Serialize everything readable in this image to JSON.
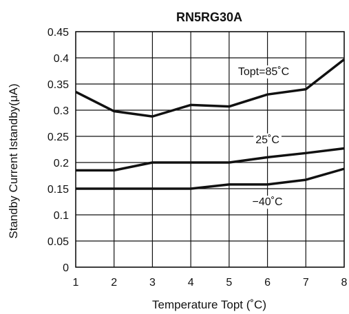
{
  "chart_data": {
    "type": "line",
    "title": "RN5RG30A",
    "xlabel": "Temperature Topt (˚C)",
    "ylabel": "Standby Current Istandby(μA)",
    "xlim": [
      1,
      8
    ],
    "ylim": [
      0,
      0.45
    ],
    "x_ticks": [
      "1",
      "2",
      "3",
      "4",
      "5",
      "6",
      "7",
      "8"
    ],
    "y_ticks": [
      "0",
      "0.05",
      "0.1",
      "0.15",
      "0.2",
      "0.25",
      "0.3",
      "0.35",
      "0.4",
      "0.45"
    ],
    "grid": true,
    "x": [
      1,
      2,
      3,
      4,
      5,
      6,
      7,
      8
    ],
    "series": [
      {
        "name": "Topt=85˚C",
        "values": [
          0.335,
          0.298,
          0.288,
          0.31,
          0.307,
          0.33,
          0.34,
          0.397
        ]
      },
      {
        "name": "25˚C",
        "values": [
          0.185,
          0.185,
          0.2,
          0.2,
          0.2,
          0.21,
          0.218,
          0.227
        ]
      },
      {
        "name": "−40˚C",
        "values": [
          0.15,
          0.15,
          0.15,
          0.15,
          0.158,
          0.158,
          0.167,
          0.188
        ]
      }
    ],
    "line_color": "#111111",
    "grid_color": "#111111"
  }
}
